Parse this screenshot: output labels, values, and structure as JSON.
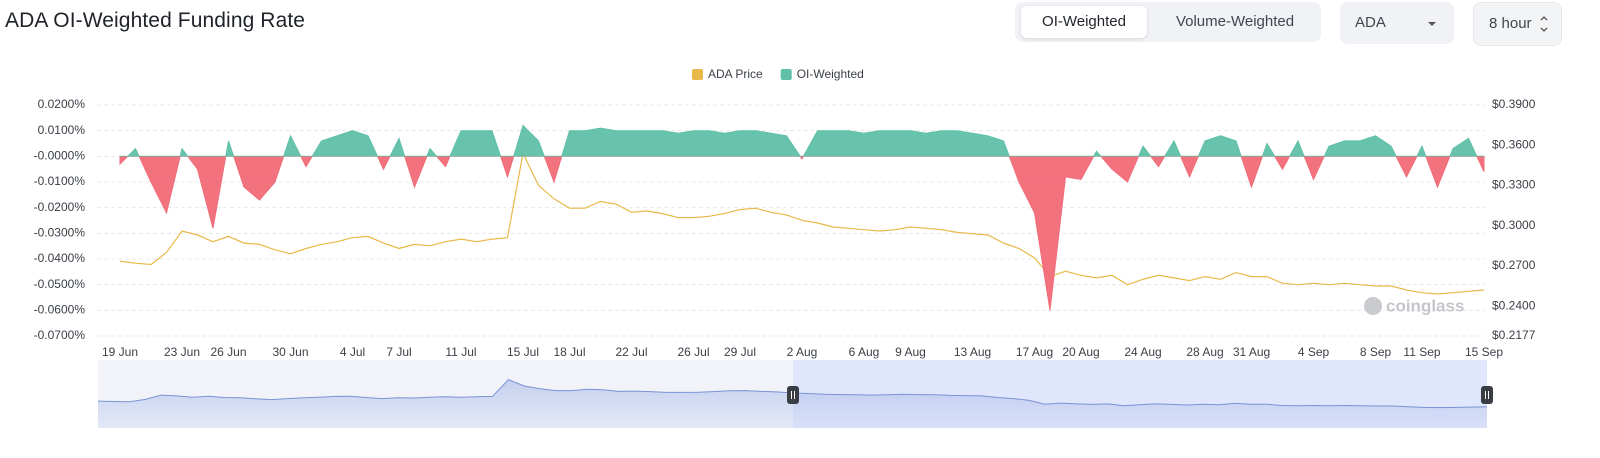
{
  "chart_data": {
    "type": "dual-axis-area-line",
    "title": "ADA OI-Weighted Funding Rate",
    "categories": [
      "19 Jun",
      null,
      null,
      null,
      "23 Jun",
      null,
      null,
      "26 Jun",
      null,
      null,
      null,
      "30 Jun",
      null,
      null,
      null,
      "4 Jul",
      null,
      null,
      "7 Jul",
      null,
      null,
      null,
      "11 Jul",
      null,
      null,
      null,
      "15 Jul",
      null,
      null,
      "18 Jul",
      null,
      null,
      null,
      "22 Jul",
      null,
      null,
      null,
      "26 Jul",
      null,
      null,
      "29 Jul",
      null,
      null,
      null,
      "2 Aug",
      null,
      null,
      null,
      "6 Aug",
      null,
      null,
      "9 Aug",
      null,
      null,
      null,
      "13 Aug",
      null,
      null,
      null,
      "17 Aug",
      null,
      null,
      "20 Aug",
      null,
      null,
      null,
      "24 Aug",
      null,
      null,
      null,
      "28 Aug",
      null,
      null,
      "31 Aug",
      null,
      null,
      null,
      "4 Sep",
      null,
      null,
      null,
      "8 Sep",
      null,
      null,
      "11 Sep",
      null,
      null,
      null,
      "15 Sep"
    ],
    "series": [
      {
        "name": "ADA Price",
        "color": "#e8b949",
        "axis": "y2",
        "values": [
          0.2735,
          0.272,
          0.271,
          0.28,
          0.296,
          0.293,
          0.288,
          0.292,
          0.287,
          0.286,
          0.282,
          0.279,
          0.283,
          0.286,
          0.288,
          0.291,
          0.292,
          0.287,
          0.283,
          0.286,
          0.285,
          0.288,
          0.29,
          0.288,
          0.29,
          0.291,
          0.354,
          0.33,
          0.32,
          0.313,
          0.313,
          0.318,
          0.316,
          0.31,
          0.311,
          0.309,
          0.306,
          0.306,
          0.307,
          0.309,
          0.312,
          0.313,
          0.31,
          0.308,
          0.304,
          0.302,
          0.299,
          0.298,
          0.297,
          0.296,
          0.297,
          0.299,
          0.298,
          0.297,
          0.295,
          0.294,
          0.293,
          0.287,
          0.283,
          0.276,
          0.262,
          0.266,
          0.263,
          0.261,
          0.263,
          0.256,
          0.26,
          0.263,
          0.261,
          0.259,
          0.262,
          0.26,
          0.265,
          0.262,
          0.262,
          0.257,
          0.256,
          0.257,
          0.256,
          0.257,
          0.256,
          0.255,
          0.255,
          0.252,
          0.25,
          0.249,
          0.25,
          0.251,
          0.252
        ]
      },
      {
        "name": "OI-Weighted",
        "color": "#5fc0a7",
        "negative_color": "#f16b77",
        "values": [
          -0.003,
          0.003,
          -0.01,
          -0.022,
          0.003,
          -0.005,
          -0.028,
          0.006,
          -0.012,
          -0.017,
          -0.01,
          0.008,
          -0.004,
          0.006,
          0.008,
          0.01,
          0.008,
          -0.005,
          0.007,
          -0.012,
          0.003,
          -0.004,
          0.01,
          0.01,
          0.01,
          -0.008,
          0.012,
          0.006,
          -0.01,
          0.01,
          0.01,
          0.011,
          0.01,
          0.01,
          0.01,
          0.01,
          0.009,
          0.01,
          0.01,
          0.009,
          0.01,
          0.01,
          0.009,
          0.008,
          -0.001,
          0.01,
          0.01,
          0.01,
          0.009,
          0.01,
          0.01,
          0.01,
          0.009,
          0.01,
          0.01,
          0.009,
          0.008,
          0.006,
          -0.01,
          -0.022,
          -0.06,
          -0.008,
          -0.009,
          0.002,
          -0.005,
          -0.01,
          0.004,
          -0.004,
          0.006,
          -0.008,
          0.006,
          0.008,
          0.006,
          -0.012,
          0.005,
          -0.005,
          0.006,
          -0.009,
          0.004,
          0.006,
          0.006,
          0.008,
          0.004,
          -0.008,
          0.004,
          -0.012,
          0.003,
          0.007,
          -0.006
        ]
      }
    ],
    "ylim": [
      -0.07,
      0.02
    ],
    "yticks": [
      {
        "value": 0.02,
        "label": "0.0200%"
      },
      {
        "value": 0.01,
        "label": "0.0100%"
      },
      {
        "value": 0,
        "label": "-0.0000%"
      },
      {
        "value": -0.01,
        "label": "-0.0100%"
      },
      {
        "value": -0.02,
        "label": "-0.0200%"
      },
      {
        "value": -0.03,
        "label": "-0.0300%"
      },
      {
        "value": -0.04,
        "label": "-0.0400%"
      },
      {
        "value": -0.05,
        "label": "-0.0500%"
      },
      {
        "value": -0.06,
        "label": "-0.0600%"
      },
      {
        "value": -0.07,
        "label": "-0.0700%"
      }
    ],
    "y2lim": [
      0.2177,
      0.39
    ],
    "y2ticks": [
      {
        "value": 0.39,
        "label": "$0.3900"
      },
      {
        "value": 0.36,
        "label": "$0.3600"
      },
      {
        "value": 0.33,
        "label": "$0.3300"
      },
      {
        "value": 0.3,
        "label": "$0.3000"
      },
      {
        "value": 0.27,
        "label": "$0.2700"
      },
      {
        "value": 0.24,
        "label": "$0.2400"
      },
      {
        "value": 0.2177,
        "label": "$0.2177"
      }
    ],
    "grid": true,
    "legend": "top",
    "watermark": "coinglass"
  },
  "controls": {
    "weighting": [
      "OI-Weighted",
      "Volume-Weighted"
    ],
    "symbol": "ADA",
    "interval": "8 hour"
  }
}
